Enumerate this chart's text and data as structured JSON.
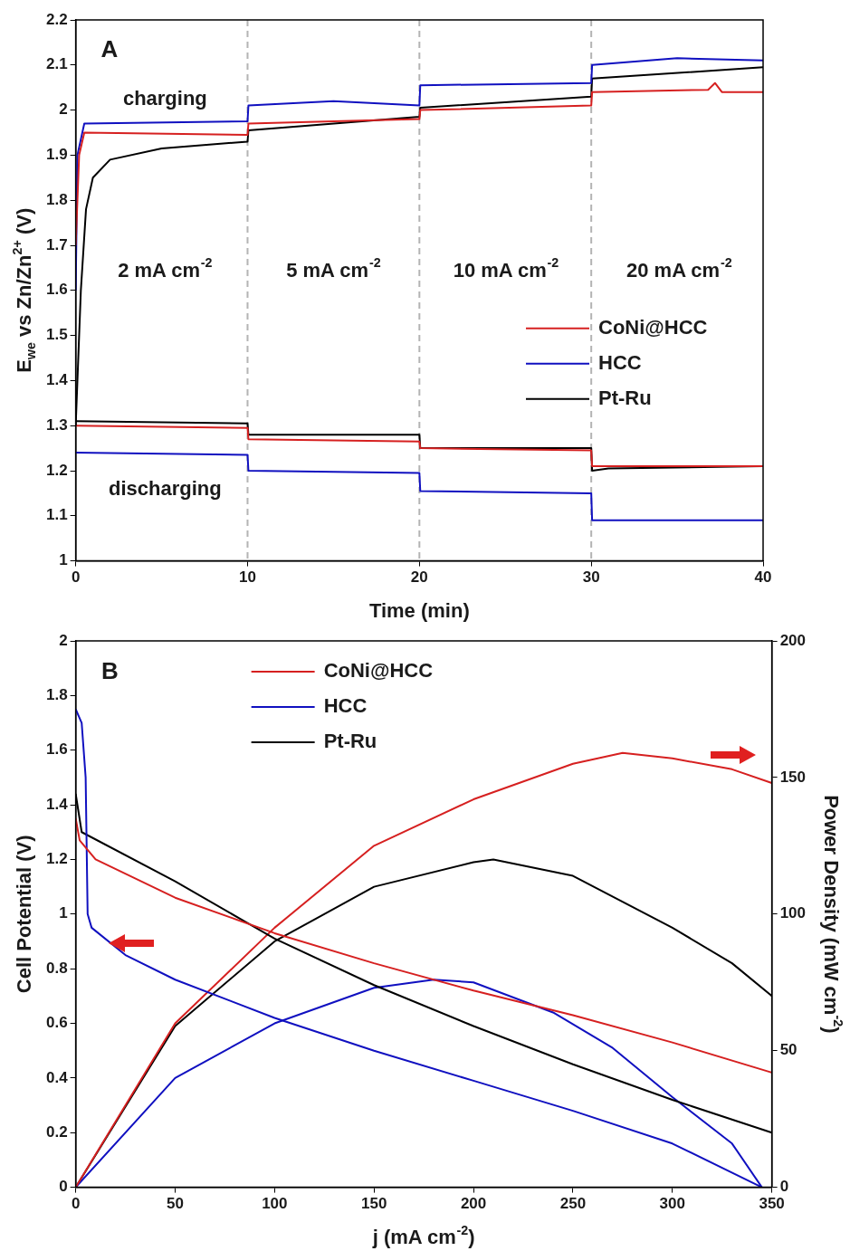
{
  "chart_data": [
    {
      "type": "line",
      "xlabel": "Time (min)",
      "ylabel": "E$_{we}$ vs Zn/Zn$^{2+}$ (V)",
      "xlim": [
        0,
        40
      ],
      "ylim": [
        1,
        2.2
      ],
      "xticks": [
        0,
        10,
        20,
        30,
        40
      ],
      "yticks": [
        1,
        1.1,
        1.2,
        1.3,
        1.4,
        1.5,
        1.6,
        1.7,
        1.8,
        1.9,
        2,
        2.1,
        2.2
      ],
      "grid": false,
      "legend": "right",
      "ref_lines": [
        {
          "axis": "x",
          "value": 10,
          "color": "#b4b4b4",
          "line_style": "dashed"
        },
        {
          "axis": "x",
          "value": 20,
          "color": "#b4b4b4",
          "line_style": "dashed"
        },
        {
          "axis": "x",
          "value": 30,
          "color": "#b4b4b4",
          "line_style": "dashed"
        }
      ],
      "annotations": [
        "A",
        "charging",
        "discharging",
        "2 mA cm$^{-2}$",
        "5 mA cm$^{-2}$",
        "10 mA cm$^{-2}$",
        "20 mA cm$^{-2}$"
      ],
      "series": [
        {
          "name": "CoNi@HCC",
          "color": "#d62020",
          "x": [
            0,
            0.2,
            0.5,
            10,
            10.05,
            20,
            20.05,
            30,
            30.05,
            36.8,
            37.2,
            37.6,
            40
          ],
          "values": [
            1.7,
            1.9,
            1.95,
            1.945,
            1.97,
            1.98,
            2,
            2.01,
            2.04,
            2.045,
            2.06,
            2.04,
            2.04
          ]
        },
        {
          "name": "HCC",
          "color": "#1010c0",
          "x": [
            0,
            0.1,
            0.5,
            10,
            10.05,
            15,
            20,
            20.05,
            30,
            30.05,
            35,
            40
          ],
          "values": [
            1.6,
            1.9,
            1.97,
            1.975,
            2.01,
            2.02,
            2.01,
            2.055,
            2.06,
            2.1,
            2.115,
            2.11
          ]
        },
        {
          "name": "Pt-Ru",
          "color": "#000000",
          "x": [
            0,
            0.3,
            0.6,
            1,
            2,
            5,
            10,
            10.05,
            20,
            20.05,
            30,
            30.05,
            40
          ],
          "values": [
            1.3,
            1.6,
            1.78,
            1.85,
            1.89,
            1.915,
            1.93,
            1.955,
            1.985,
            2.005,
            2.03,
            2.07,
            2.095
          ]
        },
        {
          "color": "#d62020",
          "x": [
            0,
            10,
            10.05,
            20,
            20.05,
            30,
            30.05,
            40
          ],
          "values": [
            1.3,
            1.295,
            1.27,
            1.265,
            1.25,
            1.245,
            1.21,
            1.21
          ]
        },
        {
          "color": "#1010c0",
          "x": [
            0,
            10,
            10.05,
            20,
            20.05,
            30,
            30.05,
            40
          ],
          "values": [
            1.24,
            1.235,
            1.2,
            1.195,
            1.155,
            1.15,
            1.09,
            1.09
          ]
        },
        {
          "color": "#000000",
          "x": [
            0,
            10,
            10.05,
            20,
            20.05,
            30,
            30.05,
            31,
            40
          ],
          "values": [
            1.31,
            1.305,
            1.28,
            1.28,
            1.25,
            1.25,
            1.2,
            1.205,
            1.21
          ]
        }
      ]
    },
    {
      "type": "line",
      "xlabel": "j (mA cm$^{-2}$)",
      "ylabel": "Cell Potential (V)",
      "y2label": "Power Density (mW cm$^{-2}$)",
      "xlim": [
        0,
        350
      ],
      "ylim": [
        0,
        2
      ],
      "y2lim": [
        0,
        200
      ],
      "xticks": [
        0,
        50,
        100,
        150,
        200,
        250,
        300,
        350
      ],
      "yticks": [
        0,
        0.2,
        0.4,
        0.6,
        0.8,
        1,
        1.2,
        1.4,
        1.6,
        1.8,
        2
      ],
      "y2ticks": [
        0,
        50,
        100,
        150,
        200
      ],
      "grid": false,
      "legend": "top",
      "annotations": [
        "B"
      ],
      "series": [
        {
          "name": "CoNi@HCC",
          "color": "#d62020",
          "x": [
            0,
            2,
            10,
            50,
            100,
            150,
            200,
            250,
            300,
            350
          ],
          "values": [
            1.35,
            1.27,
            1.2,
            1.06,
            0.93,
            0.82,
            0.72,
            0.63,
            0.53,
            0.42
          ]
        },
        {
          "name": "HCC",
          "color": "#1010c0",
          "x": [
            0,
            3,
            5,
            6,
            8,
            25,
            50,
            100,
            150,
            200,
            250,
            300,
            345
          ],
          "values": [
            1.75,
            1.7,
            1.5,
            1,
            0.95,
            0.85,
            0.76,
            0.62,
            0.5,
            0.39,
            0.28,
            0.16,
            0
          ]
        },
        {
          "name": "Pt-Ru",
          "color": "#000000",
          "x": [
            0,
            3,
            50,
            100,
            150,
            200,
            250,
            300,
            350
          ],
          "values": [
            1.44,
            1.3,
            1.12,
            0.91,
            0.74,
            0.59,
            0.45,
            0.32,
            0.2
          ]
        },
        {
          "color": "#d62020",
          "axis": "y2",
          "x": [
            0,
            50,
            100,
            150,
            200,
            250,
            275,
            300,
            330,
            350
          ],
          "values": [
            0,
            60,
            95,
            125,
            142,
            155,
            159,
            157,
            153,
            148
          ]
        },
        {
          "color": "#1010c0",
          "axis": "y2",
          "x": [
            0,
            50,
            100,
            150,
            180,
            200,
            240,
            270,
            300,
            330,
            345
          ],
          "values": [
            0,
            40,
            60,
            73,
            76,
            75,
            64,
            51,
            33,
            16,
            0
          ]
        },
        {
          "color": "#000000",
          "axis": "y2",
          "x": [
            0,
            50,
            100,
            150,
            200,
            210,
            250,
            300,
            330,
            350
          ],
          "values": [
            0,
            59,
            90,
            110,
            119,
            120,
            114,
            95,
            82,
            70
          ]
        }
      ]
    }
  ]
}
